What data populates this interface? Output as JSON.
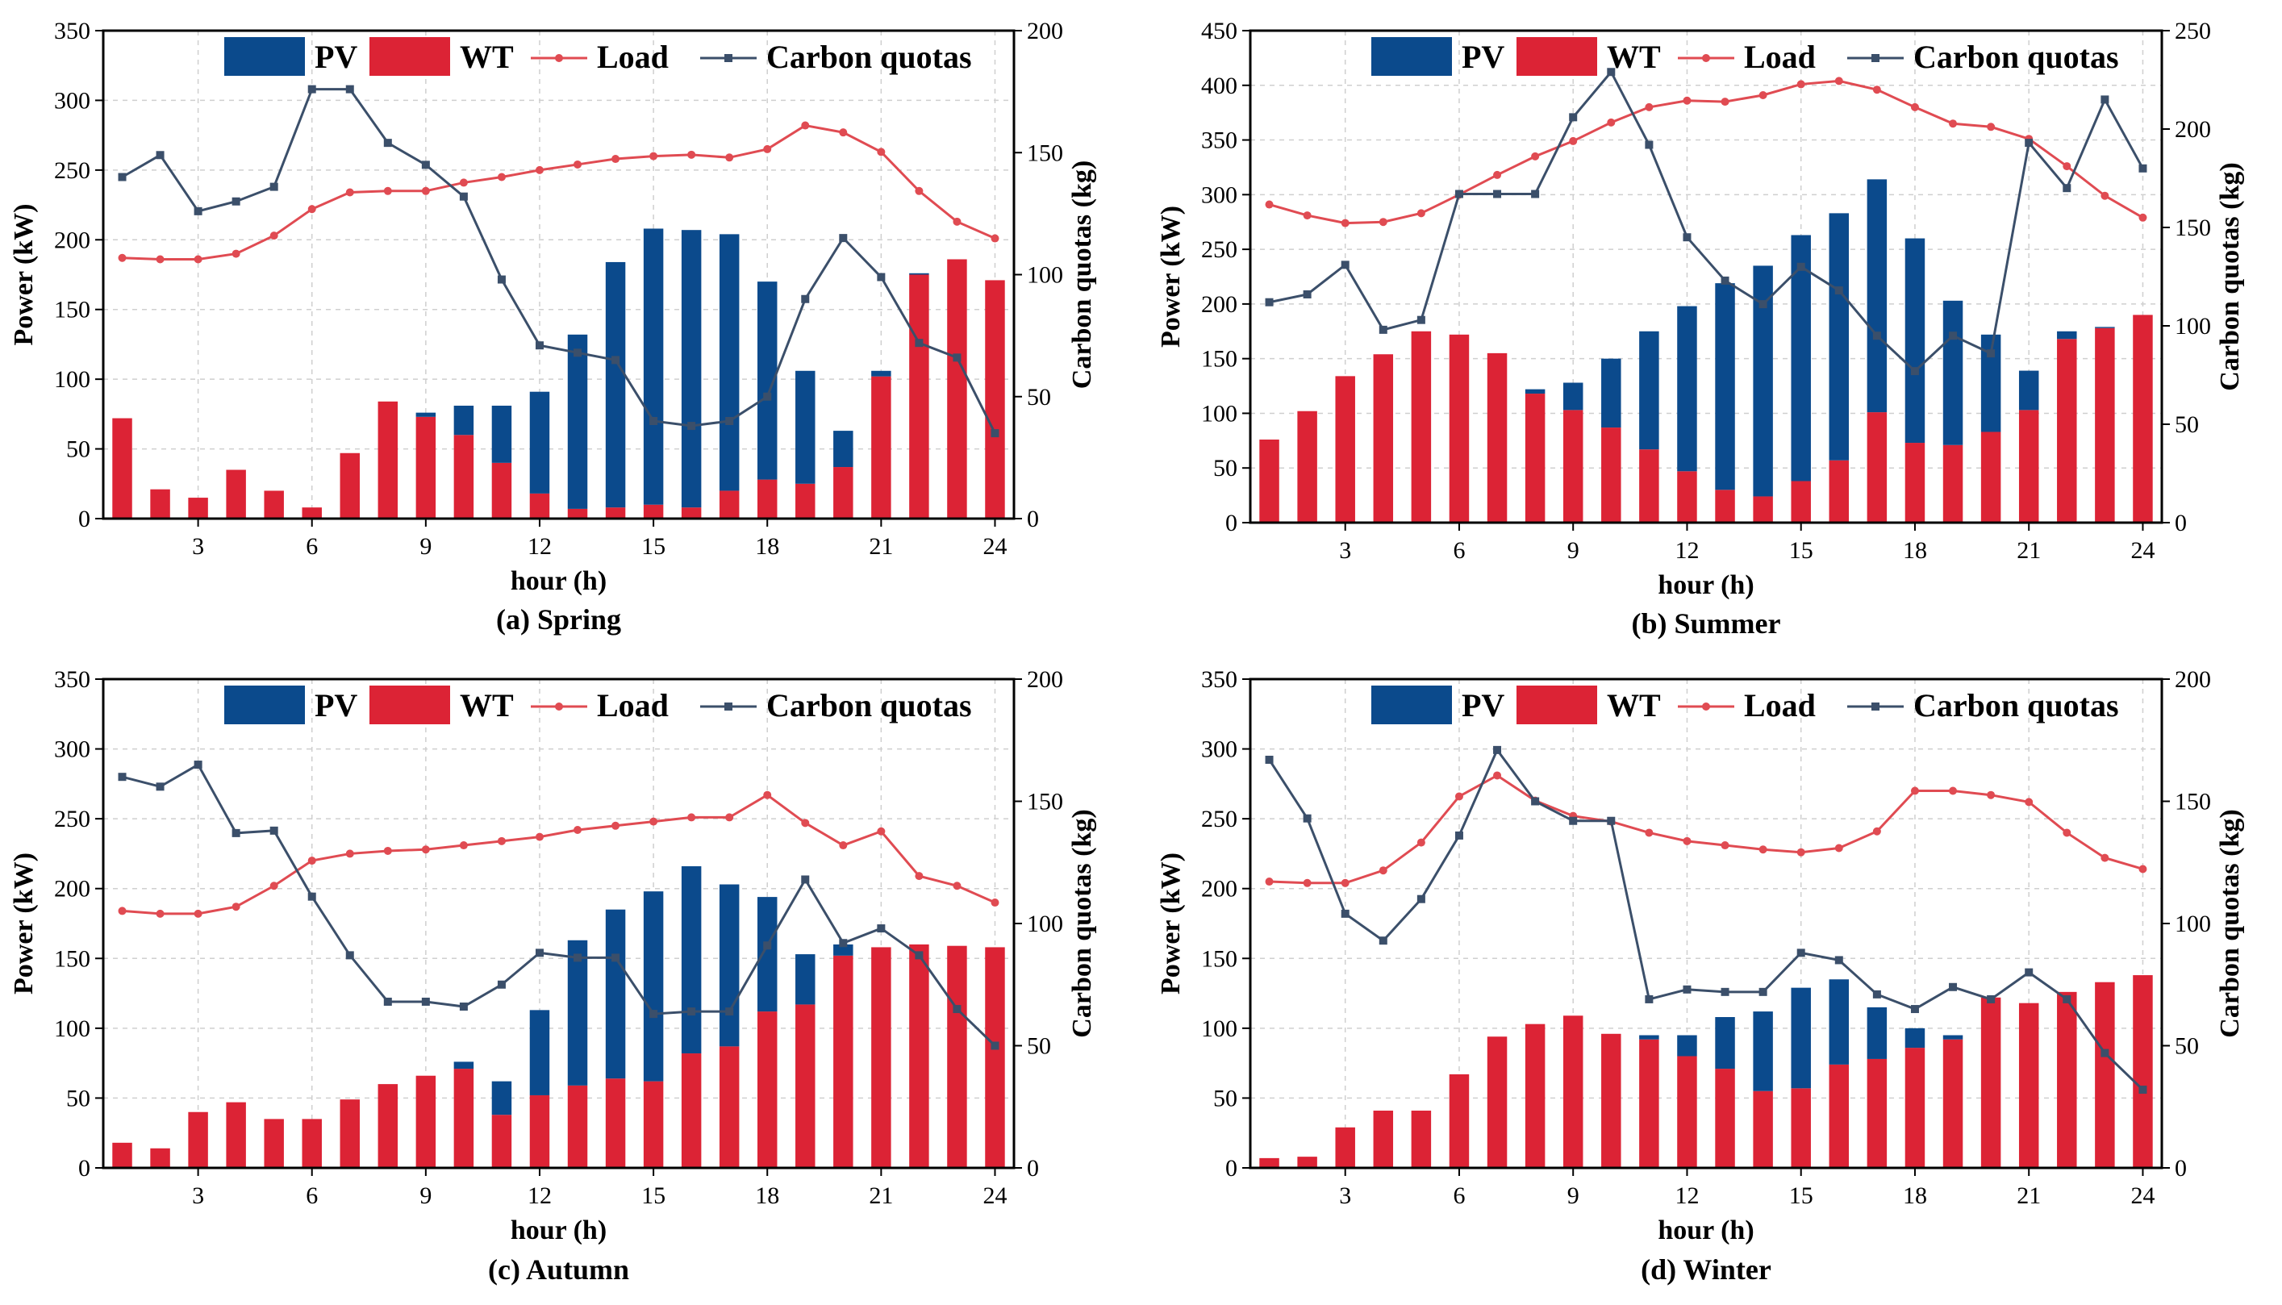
{
  "colors": {
    "pv": "#0b4a8c",
    "wt": "#dc2335",
    "load": "#e04b52",
    "carbon": "#3b4f6a",
    "grid": "#cfcfcf"
  },
  "chart_data": [
    {
      "id": "spring",
      "type": "bar+line",
      "caption": "(a) Spring",
      "xlabel": "hour (h)",
      "ylabel": "Power (kW)",
      "y2label": "Carbon quotas (kg)",
      "xticks": [
        "3",
        "6",
        "9",
        "12",
        "15",
        "18",
        "21",
        "24"
      ],
      "ylim": [
        0,
        350
      ],
      "yticks": [
        "0",
        "50",
        "100",
        "150",
        "200",
        "250",
        "300",
        "350"
      ],
      "y2lim": [
        0,
        200
      ],
      "y2ticks": [
        "0",
        "50",
        "100",
        "150",
        "200"
      ],
      "legend": [
        "PV",
        "WT",
        "Load",
        "Carbon quotas"
      ],
      "hours": [
        1,
        2,
        3,
        4,
        5,
        6,
        7,
        8,
        9,
        10,
        11,
        12,
        13,
        14,
        15,
        16,
        17,
        18,
        19,
        20,
        21,
        22,
        23,
        24
      ],
      "wt": [
        72,
        21,
        15,
        35,
        20,
        8,
        47,
        84,
        73,
        60,
        40,
        18,
        7,
        8,
        10,
        8,
        20,
        28,
        25,
        37,
        102,
        175,
        186,
        171
      ],
      "pv": [
        0,
        0,
        0,
        0,
        0,
        0,
        0,
        0,
        3,
        21,
        41,
        73,
        125,
        176,
        198,
        199,
        184,
        142,
        81,
        26,
        4,
        1,
        0,
        0
      ],
      "load": [
        187,
        186,
        186,
        190,
        203,
        222,
        234,
        235,
        235,
        241,
        245,
        250,
        254,
        258,
        260,
        261,
        259,
        265,
        282,
        277,
        263,
        235,
        213,
        201
      ],
      "carbon": [
        140,
        149,
        126,
        130,
        136,
        176,
        176,
        154,
        145,
        132,
        98,
        71,
        68,
        65,
        40,
        38,
        40,
        50,
        90,
        115,
        99,
        72,
        66,
        35
      ]
    },
    {
      "id": "summer",
      "type": "bar+line",
      "caption": "(b) Summer",
      "xlabel": "hour (h)",
      "ylabel": "Power (kW)",
      "y2label": "Carbon quotas (kg)",
      "xticks": [
        "3",
        "6",
        "9",
        "12",
        "15",
        "18",
        "21",
        "24"
      ],
      "ylim": [
        0,
        450
      ],
      "yticks": [
        "0",
        "50",
        "100",
        "150",
        "200",
        "250",
        "300",
        "350",
        "400",
        "450"
      ],
      "y2lim": [
        0,
        250
      ],
      "y2ticks": [
        "0",
        "50",
        "100",
        "150",
        "200",
        "250"
      ],
      "legend": [
        "PV",
        "WT",
        "Load",
        "Carbon quotas"
      ],
      "hours": [
        1,
        2,
        3,
        4,
        5,
        6,
        7,
        8,
        9,
        10,
        11,
        12,
        13,
        14,
        15,
        16,
        17,
        18,
        19,
        20,
        21,
        22,
        23,
        24
      ],
      "wt": [
        76,
        102,
        134,
        154,
        175,
        172,
        155,
        118,
        103,
        87,
        67,
        47,
        30,
        24,
        38,
        57,
        101,
        73,
        71,
        83,
        103,
        168,
        178,
        190
      ],
      "pv": [
        0,
        0,
        0,
        0,
        0,
        0,
        0,
        4,
        25,
        63,
        108,
        151,
        189,
        211,
        225,
        226,
        213,
        187,
        132,
        89,
        36,
        7,
        1,
        0
      ],
      "load": [
        291,
        281,
        274,
        275,
        283,
        300,
        318,
        335,
        349,
        366,
        380,
        386,
        385,
        391,
        401,
        404,
        396,
        380,
        365,
        362,
        351,
        326,
        299,
        279
      ],
      "carbon": [
        112,
        116,
        131,
        98,
        103,
        167,
        167,
        167,
        206,
        229,
        192,
        145,
        123,
        111,
        130,
        118,
        95,
        77,
        95,
        86,
        193,
        170,
        215,
        180
      ]
    },
    {
      "id": "autumn",
      "type": "bar+line",
      "caption": "(c) Autumn",
      "xlabel": "hour (h)",
      "ylabel": "Power (kW)",
      "y2label": "Carbon quotas (kg)",
      "xticks": [
        "3",
        "6",
        "9",
        "12",
        "15",
        "18",
        "21",
        "24"
      ],
      "ylim": [
        0,
        350
      ],
      "yticks": [
        "0",
        "50",
        "100",
        "150",
        "200",
        "250",
        "300",
        "350"
      ],
      "y2lim": [
        0,
        200
      ],
      "y2ticks": [
        "0",
        "50",
        "100",
        "150",
        "200"
      ],
      "legend": [
        "PV",
        "WT",
        "Load",
        "Carbon quotas"
      ],
      "hours": [
        1,
        2,
        3,
        4,
        5,
        6,
        7,
        8,
        9,
        10,
        11,
        12,
        13,
        14,
        15,
        16,
        17,
        18,
        19,
        20,
        21,
        22,
        23,
        24
      ],
      "wt": [
        18,
        14,
        40,
        47,
        35,
        35,
        49,
        60,
        66,
        71,
        38,
        52,
        59,
        64,
        62,
        82,
        87,
        112,
        117,
        152,
        158,
        160,
        159,
        158
      ],
      "pv": [
        0,
        0,
        0,
        0,
        0,
        0,
        0,
        0,
        0,
        5,
        24,
        61,
        104,
        121,
        136,
        134,
        116,
        82,
        36,
        8,
        0,
        0,
        0,
        0
      ],
      "load": [
        184,
        182,
        182,
        187,
        202,
        220,
        225,
        227,
        228,
        231,
        234,
        237,
        242,
        245,
        248,
        251,
        251,
        267,
        247,
        231,
        241,
        209,
        202,
        190
      ],
      "carbon": [
        160,
        156,
        165,
        137,
        138,
        111,
        87,
        68,
        68,
        66,
        75,
        88,
        86,
        86,
        63,
        64,
        64,
        91,
        118,
        92,
        98,
        87,
        65,
        50
      ]
    },
    {
      "id": "winter",
      "type": "bar+line",
      "caption": "(d) Winter",
      "xlabel": "hour (h)",
      "ylabel": "Power (kW)",
      "y2label": "Carbon quotas (kg)",
      "xticks": [
        "3",
        "6",
        "9",
        "12",
        "15",
        "18",
        "21",
        "24"
      ],
      "ylim": [
        0,
        350
      ],
      "yticks": [
        "0",
        "50",
        "100",
        "150",
        "200",
        "250",
        "300",
        "350"
      ],
      "y2lim": [
        0,
        200
      ],
      "y2ticks": [
        "0",
        "50",
        "100",
        "150",
        "200"
      ],
      "legend": [
        "PV",
        "WT",
        "Load",
        "Carbon quotas"
      ],
      "hours": [
        1,
        2,
        3,
        4,
        5,
        6,
        7,
        8,
        9,
        10,
        11,
        12,
        13,
        14,
        15,
        16,
        17,
        18,
        19,
        20,
        21,
        22,
        23,
        24
      ],
      "wt": [
        7,
        8,
        29,
        41,
        41,
        67,
        94,
        103,
        109,
        96,
        92,
        80,
        71,
        55,
        57,
        74,
        78,
        86,
        92,
        122,
        118,
        126,
        133,
        138
      ],
      "pv": [
        0,
        0,
        0,
        0,
        0,
        0,
        0,
        0,
        0,
        0,
        3,
        15,
        37,
        57,
        72,
        61,
        37,
        14,
        3,
        0,
        0,
        0,
        0,
        0
      ],
      "load": [
        205,
        204,
        204,
        213,
        233,
        266,
        281,
        263,
        252,
        248,
        240,
        234,
        231,
        228,
        226,
        229,
        241,
        270,
        270,
        267,
        262,
        240,
        222,
        214
      ],
      "carbon": [
        167,
        143,
        104,
        93,
        110,
        136,
        171,
        150,
        142,
        142,
        69,
        73,
        72,
        72,
        88,
        85,
        71,
        65,
        74,
        69,
        80,
        69,
        47,
        32
      ]
    }
  ]
}
